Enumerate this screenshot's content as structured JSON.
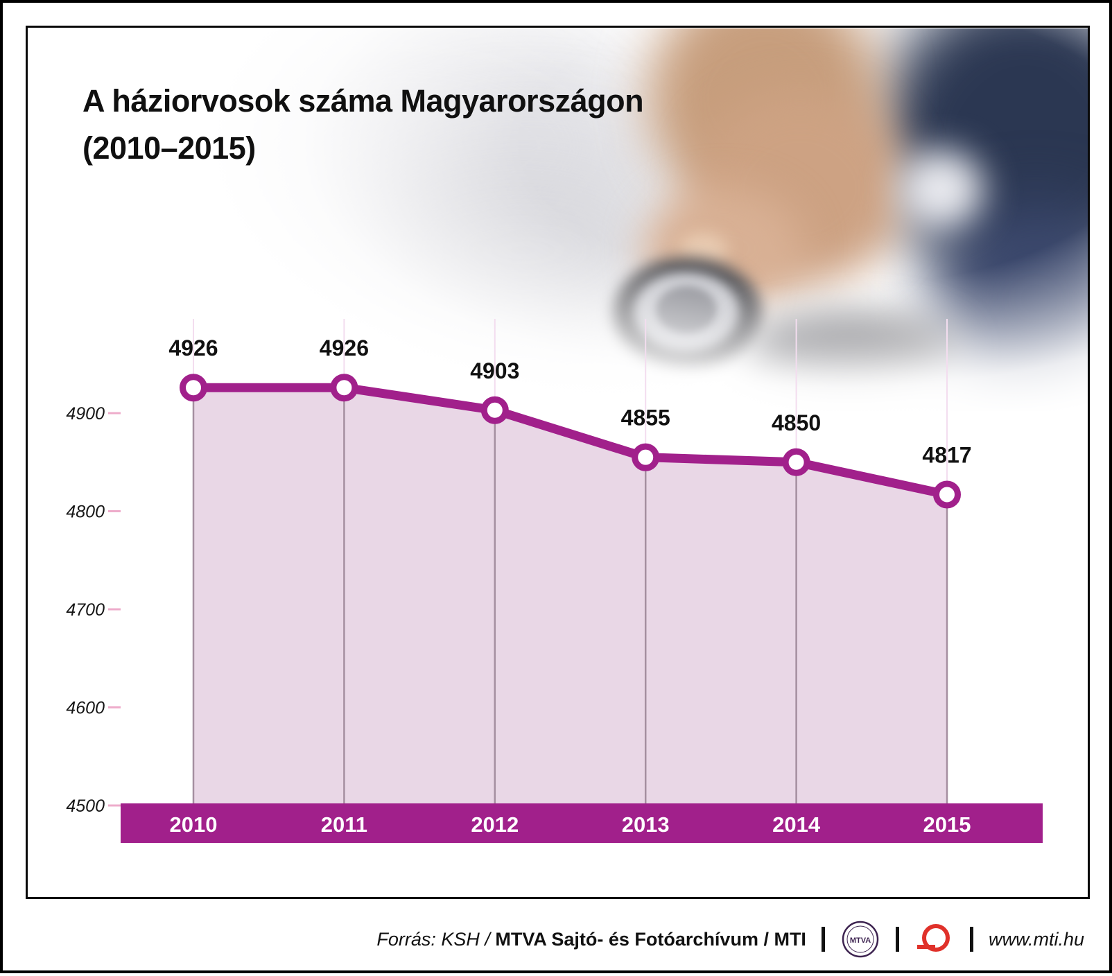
{
  "header": {
    "title_line1": "A háziorvosok száma Magyarországon",
    "title_line2": "(2010–2015)"
  },
  "chart_data": {
    "type": "line",
    "title": "A háziorvosok száma Magyarországon (2010–2015)",
    "categories": [
      "2010",
      "2011",
      "2012",
      "2013",
      "2014",
      "2015"
    ],
    "values": [
      4926,
      4926,
      4903,
      4855,
      4850,
      4817
    ],
    "xlabel": "",
    "ylabel": "",
    "ylim": [
      4500,
      4965
    ],
    "yticks": [
      4500,
      4600,
      4700,
      4800,
      4900
    ],
    "grid": "vertical-only",
    "legend": "none",
    "colors": {
      "line": "#a1208b",
      "marker_fill": "#ffffff",
      "area": "#e9d7e6",
      "gridline": "#f3ddef",
      "drop_line": "#a58fa0",
      "axis_band": "#a1208b",
      "tick": "#eeaccb",
      "value_label": "#111111",
      "year_label": "#ffffff",
      "ytick_label": "#161616"
    }
  },
  "photo": {
    "description": "hand-holding-stethoscope"
  },
  "footer": {
    "source_italic": "Forrás: KSH /",
    "source_bold": "MTVA Sajtó- és Fotóarchívum / MTI",
    "mtva_logo_text": "MTVA",
    "website": "www.mti.hu"
  }
}
